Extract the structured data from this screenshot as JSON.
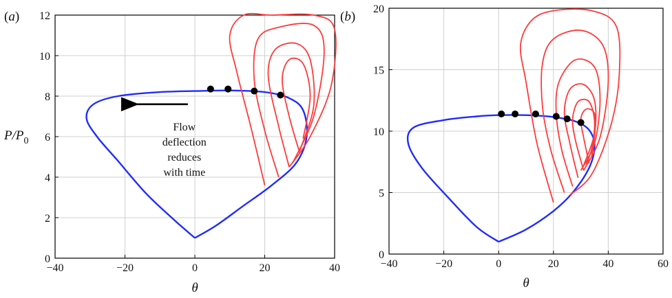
{
  "colors": {
    "hugoniot": "#1f2bff",
    "shock": "#ff3a3a",
    "marker": "#000000",
    "grid": "#cfcfcf"
  },
  "chart_data": [
    {
      "panel": "(a)",
      "type": "line",
      "xlabel": "θ",
      "ylabel_main": "P/P",
      "ylabel_sub": "0",
      "xlim": [
        -40,
        40
      ],
      "ylim": [
        0,
        12
      ],
      "xticks": [
        -40,
        -20,
        0,
        20,
        40
      ],
      "yticks": [
        0,
        2,
        4,
        6,
        8,
        10,
        12
      ],
      "xtick_labels": [
        "−40",
        "−20",
        "0",
        "20",
        "40"
      ],
      "ytick_labels": [
        "0",
        "2",
        "4",
        "6",
        "8",
        "10",
        "12"
      ],
      "grid": true,
      "annotation": {
        "lines": [
          "Flow",
          "deflection",
          "reduces",
          "with time"
        ],
        "arrow_from": [
          -2,
          7.6
        ],
        "arrow_to": [
          -17,
          7.6
        ]
      },
      "blue_polar": [
        [
          0,
          1
        ],
        [
          -6,
          1.9
        ],
        [
          -14,
          3.2
        ],
        [
          -22,
          4.8
        ],
        [
          -28,
          6.0
        ],
        [
          -31,
          6.9
        ],
        [
          -29,
          7.6
        ],
        [
          -22,
          8.0
        ],
        [
          -10,
          8.2
        ],
        [
          0,
          8.25
        ],
        [
          10,
          8.28
        ],
        [
          20,
          8.2
        ],
        [
          27,
          7.9
        ],
        [
          31,
          7.3
        ],
        [
          32,
          6.0
        ],
        [
          29,
          4.7
        ],
        [
          22,
          3.6
        ],
        [
          14,
          2.6
        ],
        [
          6,
          1.6
        ],
        [
          0,
          1
        ]
      ],
      "red_polars": [
        [
          [
            20,
            3.6
          ],
          [
            16,
            6.5
          ],
          [
            12,
            9.2
          ],
          [
            10,
            11.0
          ],
          [
            14,
            12.0
          ],
          [
            22,
            12.0
          ],
          [
            34,
            12.0
          ],
          [
            40,
            11.3
          ],
          [
            39,
            8.5
          ],
          [
            33,
            6.0
          ],
          [
            27,
            4.5
          ]
        ],
        [
          [
            24,
            4.0
          ],
          [
            20,
            6.3
          ],
          [
            17,
            8.8
          ],
          [
            18,
            10.8
          ],
          [
            24,
            11.4
          ],
          [
            34,
            11.5
          ],
          [
            37,
            10.2
          ],
          [
            34,
            7.0
          ],
          [
            28,
            4.7
          ]
        ],
        [
          [
            27,
            4.5
          ],
          [
            24,
            6.5
          ],
          [
            21,
            9.0
          ],
          [
            23,
            10.3
          ],
          [
            29,
            10.6
          ],
          [
            33,
            9.8
          ],
          [
            34,
            7.5
          ],
          [
            30,
            5.3
          ]
        ],
        [
          [
            30,
            5.2
          ],
          [
            27,
            7.0
          ],
          [
            25,
            8.8
          ],
          [
            27,
            9.8
          ],
          [
            31,
            9.6
          ],
          [
            33,
            8.0
          ],
          [
            31,
            5.9
          ]
        ]
      ],
      "markers": [
        [
          4.5,
          8.35
        ],
        [
          9.5,
          8.35
        ],
        [
          17,
          8.25
        ],
        [
          24.5,
          8.05
        ]
      ]
    },
    {
      "panel": "(b)",
      "type": "line",
      "xlabel": "θ",
      "xlim": [
        -40,
        60
      ],
      "ylim": [
        0,
        20
      ],
      "xticks": [
        -40,
        -20,
        0,
        20,
        40,
        60
      ],
      "yticks": [
        0,
        5,
        10,
        15,
        20
      ],
      "xtick_labels": [
        "−40",
        "−20",
        "0",
        "20",
        "40",
        "60"
      ],
      "ytick_labels": [
        "0",
        "5",
        "10",
        "15",
        "20"
      ],
      "grid": true,
      "blue_polar": [
        [
          0,
          1
        ],
        [
          -8,
          2.2
        ],
        [
          -18,
          4.5
        ],
        [
          -28,
          7.0
        ],
        [
          -33,
          9.0
        ],
        [
          -31,
          10.3
        ],
        [
          -20,
          10.9
        ],
        [
          -8,
          11.2
        ],
        [
          0,
          11.3
        ],
        [
          10,
          11.3
        ],
        [
          20,
          11.15
        ],
        [
          28,
          10.8
        ],
        [
          33,
          10.1
        ],
        [
          35,
          8.8
        ],
        [
          33,
          7.0
        ],
        [
          27,
          5.0
        ],
        [
          20,
          3.5
        ],
        [
          10,
          2.0
        ],
        [
          0,
          1
        ]
      ],
      "red_polars": [
        [
          [
            20,
            4.2
          ],
          [
            14,
            9.0
          ],
          [
            10,
            14.0
          ],
          [
            8,
            17.0
          ],
          [
            12,
            19.0
          ],
          [
            20,
            19.8
          ],
          [
            34,
            19.8
          ],
          [
            43,
            18.5
          ],
          [
            44,
            14.5
          ],
          [
            41,
            10.5
          ],
          [
            34,
            6.5
          ],
          [
            26,
            4.8
          ]
        ],
        [
          [
            24,
            5.0
          ],
          [
            19,
            8.5
          ],
          [
            16,
            12.0
          ],
          [
            16,
            15.5
          ],
          [
            20,
            17.5
          ],
          [
            30,
            18.2
          ],
          [
            38,
            17.0
          ],
          [
            40,
            14.0
          ],
          [
            37,
            9.5
          ],
          [
            31,
            6.8
          ]
        ],
        [
          [
            27,
            5.5
          ],
          [
            23,
            8.5
          ],
          [
            21,
            11.5
          ],
          [
            22,
            14.0
          ],
          [
            28,
            15.8
          ],
          [
            35,
            15.2
          ],
          [
            37,
            12.5
          ],
          [
            35,
            9.0
          ],
          [
            30,
            6.8
          ]
        ],
        [
          [
            29,
            6.2
          ],
          [
            26,
            9.0
          ],
          [
            24,
            11.5
          ],
          [
            26,
            13.4
          ],
          [
            31,
            13.8
          ],
          [
            35,
            12.5
          ],
          [
            35,
            9.8
          ],
          [
            31,
            7.2
          ]
        ],
        [
          [
            31,
            6.8
          ],
          [
            28,
            9.3
          ],
          [
            27,
            11.0
          ],
          [
            29,
            12.4
          ],
          [
            33,
            12.4
          ],
          [
            35,
            10.8
          ],
          [
            34,
            8.6
          ],
          [
            32,
            7.3
          ]
        ],
        [
          [
            33,
            7.4
          ],
          [
            31,
            9.5
          ],
          [
            30,
            11.0
          ],
          [
            32,
            11.8
          ],
          [
            35,
            11.4
          ],
          [
            35,
            9.6
          ],
          [
            34,
            8.0
          ]
        ]
      ],
      "markers": [
        [
          1,
          11.4
        ],
        [
          6,
          11.4
        ],
        [
          13.5,
          11.4
        ],
        [
          21,
          11.2
        ],
        [
          25,
          11.0
        ],
        [
          30,
          10.7
        ]
      ]
    }
  ]
}
